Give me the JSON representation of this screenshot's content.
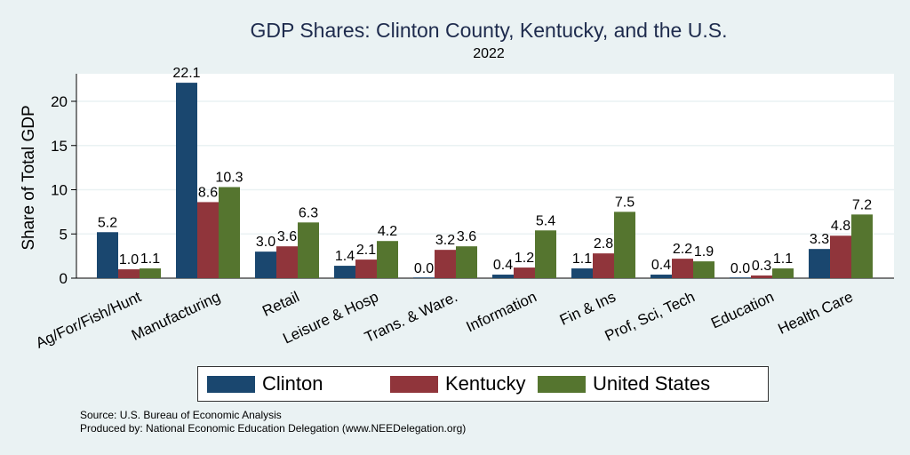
{
  "chart_data": {
    "type": "bar",
    "title": "GDP Shares: Clinton County, Kentucky, and the U.S.",
    "subtitle": "2022",
    "xlabel": "",
    "ylabel": "Share of Total GDP",
    "ylim": [
      0,
      23
    ],
    "yticks": [
      0,
      5,
      10,
      15,
      20
    ],
    "grid": true,
    "legend_position": "bottom",
    "categories": [
      "Ag/For/Fish/Hunt",
      "Manufacturing",
      "Retail",
      "Leisure & Hosp",
      "Trans. & Ware.",
      "Information",
      "Fin & Ins",
      "Prof, Sci, Tech",
      "Education",
      "Health Care"
    ],
    "series": [
      {
        "name": "Clinton",
        "color": "#1a476f",
        "values": [
          5.2,
          22.1,
          3.0,
          1.4,
          0.0,
          0.4,
          1.1,
          0.4,
          0.0,
          3.3
        ]
      },
      {
        "name": "Kentucky",
        "color": "#90353b",
        "values": [
          1.0,
          8.6,
          3.6,
          2.1,
          3.2,
          1.2,
          2.8,
          2.2,
          0.3,
          4.8
        ]
      },
      {
        "name": "United States",
        "color": "#55752f",
        "values": [
          1.1,
          10.3,
          6.3,
          4.2,
          3.6,
          5.4,
          7.5,
          1.9,
          1.1,
          7.2
        ]
      }
    ]
  },
  "footer": {
    "source": "Source: U.S. Bureau of Economic Analysis",
    "produced_by": "Produced by: National Economic Education Delegation (www.NEEDelegation.org)"
  }
}
